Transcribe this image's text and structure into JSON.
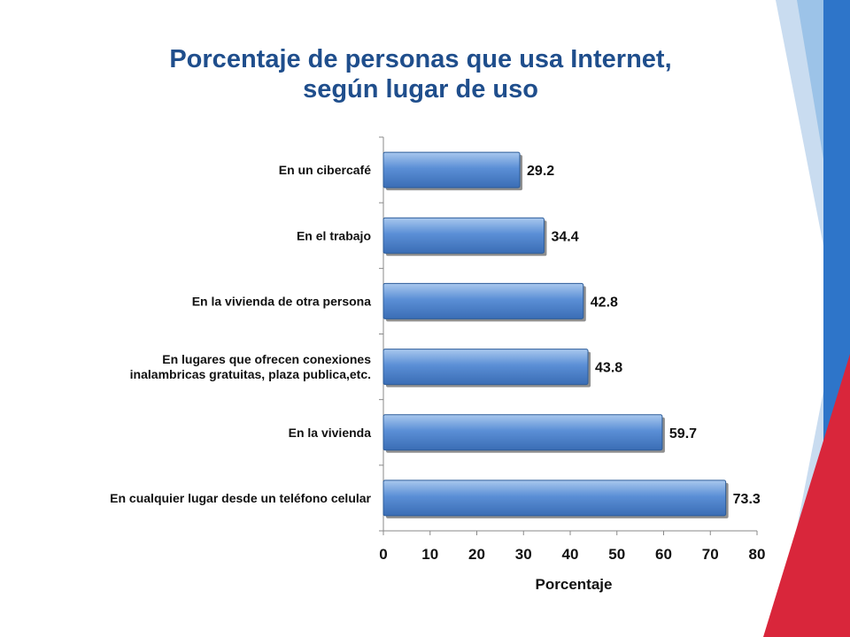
{
  "slide": {
    "title_line1": "Porcentaje de personas que usa Internet,",
    "title_line2": "según lugar de uso"
  },
  "colors": {
    "title": "#1f4e8c",
    "bar_fill": "#4f81bd",
    "bar_light": "#8fb4e3",
    "bar_dark": "#2c5c99",
    "deco_blue": "#2e75c9",
    "deco_light_blue": "#9cc3e8",
    "deco_red": "#d9263b"
  },
  "chart_data": {
    "type": "bar",
    "orientation": "horizontal",
    "categories": [
      [
        "En un cibercafé"
      ],
      [
        "En el trabajo"
      ],
      [
        "En la vivienda de otra persona"
      ],
      [
        "En lugares que ofrecen conexiones",
        "inalambricas gratuitas, plaza publica,etc."
      ],
      [
        "En la vivienda"
      ],
      [
        "En cualquier lugar desde un teléfono celular"
      ]
    ],
    "values": [
      29.2,
      34.4,
      42.8,
      43.8,
      59.7,
      73.3
    ],
    "value_labels": [
      "29.2",
      "34.4",
      "42.8",
      "43.8",
      "59.7",
      "73.3"
    ],
    "title": "",
    "xlabel": "Porcentaje",
    "ylabel": "",
    "xlim": [
      0,
      80
    ],
    "xticks": [
      0,
      10,
      20,
      30,
      40,
      50,
      60,
      70,
      80
    ],
    "grid": false,
    "legend": "none"
  }
}
